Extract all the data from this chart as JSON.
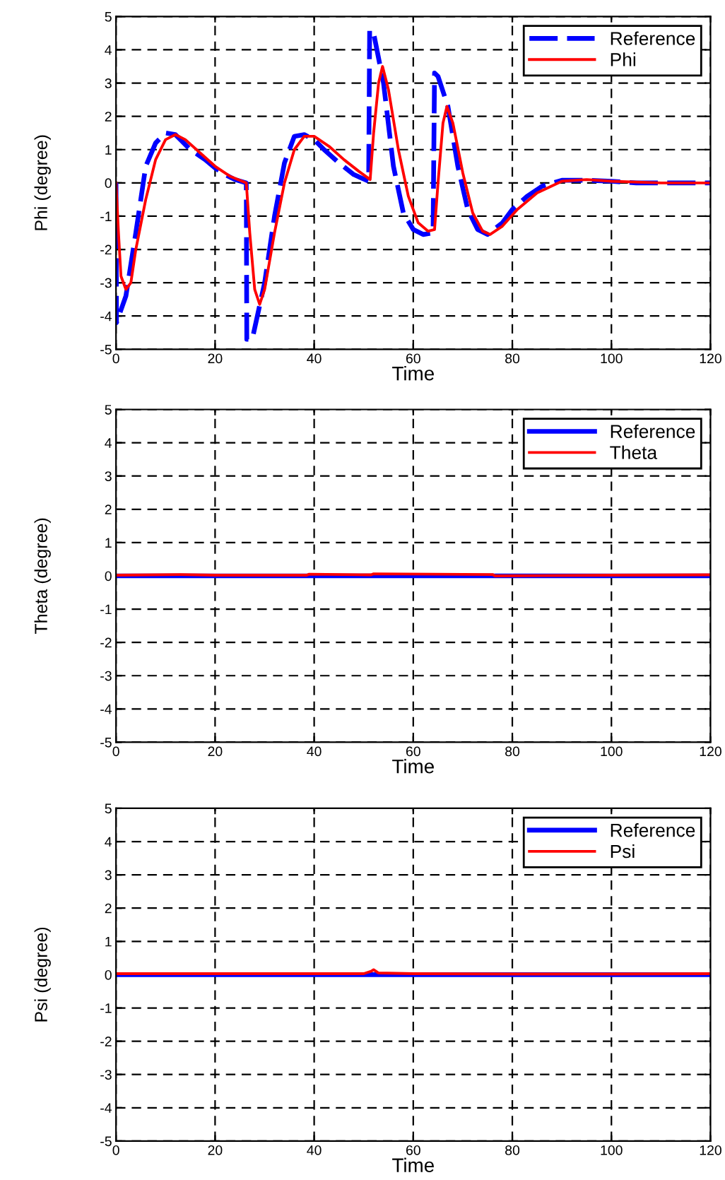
{
  "chart_data": [
    {
      "type": "line",
      "xlabel": "Time",
      "ylabel": "Phi (degree)",
      "xlim": [
        0,
        120
      ],
      "ylim": [
        -5,
        5
      ],
      "xticks": [
        0,
        20,
        40,
        60,
        80,
        100,
        120
      ],
      "yticks": [
        -5,
        -4,
        -3,
        -2,
        -1,
        0,
        1,
        2,
        3,
        4,
        5
      ],
      "grid": true,
      "legend": "top right",
      "series": [
        {
          "name": "Reference",
          "color": "#0000ff",
          "line_style": "dashed",
          "x": [
            0,
            0.1,
            2,
            4,
            6,
            8,
            10,
            12,
            15,
            18,
            20,
            22,
            24,
            26.3,
            26.4,
            27.5,
            30,
            32,
            34,
            36,
            38,
            40,
            42,
            45,
            48,
            51,
            51.2,
            52,
            54,
            56,
            58,
            60,
            62,
            64,
            64.3,
            65,
            67,
            69,
            71,
            73,
            75,
            78,
            80,
            83,
            86,
            90,
            95,
            100,
            105,
            120
          ],
          "values": [
            0,
            -4.2,
            -3.4,
            -1.5,
            0.5,
            1.2,
            1.5,
            1.45,
            1.0,
            0.7,
            0.45,
            0.25,
            0.1,
            0.0,
            -4.7,
            -4.7,
            -3.0,
            -1.0,
            0.6,
            1.4,
            1.45,
            1.3,
            1.0,
            0.6,
            0.25,
            0.05,
            4.6,
            4.5,
            3.0,
            0.5,
            -0.9,
            -1.4,
            -1.55,
            -1.5,
            3.3,
            3.2,
            2.3,
            0.5,
            -0.8,
            -1.4,
            -1.55,
            -1.2,
            -0.8,
            -0.4,
            -0.1,
            0.08,
            0.08,
            0.05,
            0.0,
            0.0
          ]
        },
        {
          "name": "Phi",
          "color": "#ff0000",
          "line_style": "solid",
          "x": [
            0,
            0.5,
            1,
            2,
            3,
            4,
            6,
            8,
            10,
            12,
            14,
            17,
            20,
            23,
            26.3,
            27,
            28,
            29,
            30,
            32,
            34,
            36,
            38,
            40,
            43,
            46,
            49,
            51.3,
            52,
            53,
            53.8,
            55,
            57,
            59,
            61,
            63,
            64.3,
            65,
            66,
            66.8,
            68,
            70,
            72,
            74,
            75.5,
            78,
            81,
            85,
            90,
            95,
            100,
            110,
            120
          ],
          "values": [
            0,
            -1.5,
            -2.8,
            -3.2,
            -3.0,
            -2.0,
            -0.5,
            0.7,
            1.3,
            1.45,
            1.3,
            0.9,
            0.5,
            0.2,
            0.0,
            -1.5,
            -3.2,
            -3.65,
            -3.2,
            -1.5,
            0.0,
            1.0,
            1.4,
            1.4,
            1.1,
            0.7,
            0.35,
            0.1,
            1.5,
            3.0,
            3.5,
            2.8,
            1.0,
            -0.4,
            -1.2,
            -1.45,
            -1.4,
            0.0,
            1.8,
            2.3,
            1.8,
            0.3,
            -0.9,
            -1.45,
            -1.55,
            -1.3,
            -0.8,
            -0.3,
            0.05,
            0.1,
            0.05,
            0.0,
            0.0
          ]
        }
      ]
    },
    {
      "type": "line",
      "xlabel": "Time",
      "ylabel": "Theta (degree)",
      "xlim": [
        0,
        120
      ],
      "ylim": [
        -5,
        5
      ],
      "xticks": [
        0,
        20,
        40,
        60,
        80,
        100,
        120
      ],
      "yticks": [
        -5,
        -4,
        -3,
        -2,
        -1,
        0,
        1,
        2,
        3,
        4,
        5
      ],
      "grid": true,
      "legend": "top right",
      "series": [
        {
          "name": "Reference",
          "color": "#0000ff",
          "line_style": "solid",
          "x": [
            0,
            120
          ],
          "values": [
            0,
            0
          ]
        },
        {
          "name": "Theta",
          "color": "#ff0000",
          "line_style": "solid",
          "x": [
            0,
            13,
            20,
            38.5,
            39,
            51.5,
            52,
            76,
            76.5,
            100,
            120
          ],
          "values": [
            0.02,
            0.04,
            0.02,
            0.02,
            0.05,
            0.03,
            0.06,
            0.04,
            0.0,
            0.02,
            0.03
          ]
        }
      ]
    },
    {
      "type": "line",
      "xlabel": "Time",
      "ylabel": "Psi (degree)",
      "xlim": [
        0,
        120
      ],
      "ylim": [
        -5,
        5
      ],
      "xticks": [
        0,
        20,
        40,
        60,
        80,
        100,
        120
      ],
      "yticks": [
        -5,
        -4,
        -3,
        -2,
        -1,
        0,
        1,
        2,
        3,
        4,
        5
      ],
      "grid": true,
      "legend": "top right",
      "series": [
        {
          "name": "Reference",
          "color": "#0000ff",
          "line_style": "solid",
          "x": [
            0,
            120
          ],
          "values": [
            0,
            0
          ]
        },
        {
          "name": "Psi",
          "color": "#ff0000",
          "line_style": "solid",
          "x": [
            0,
            20,
            40,
            50,
            51.5,
            52,
            53,
            60,
            80,
            100,
            120
          ],
          "values": [
            0.03,
            0.03,
            0.03,
            0.03,
            0.1,
            0.15,
            0.05,
            0.03,
            0.02,
            0.02,
            0.03
          ]
        }
      ]
    }
  ]
}
